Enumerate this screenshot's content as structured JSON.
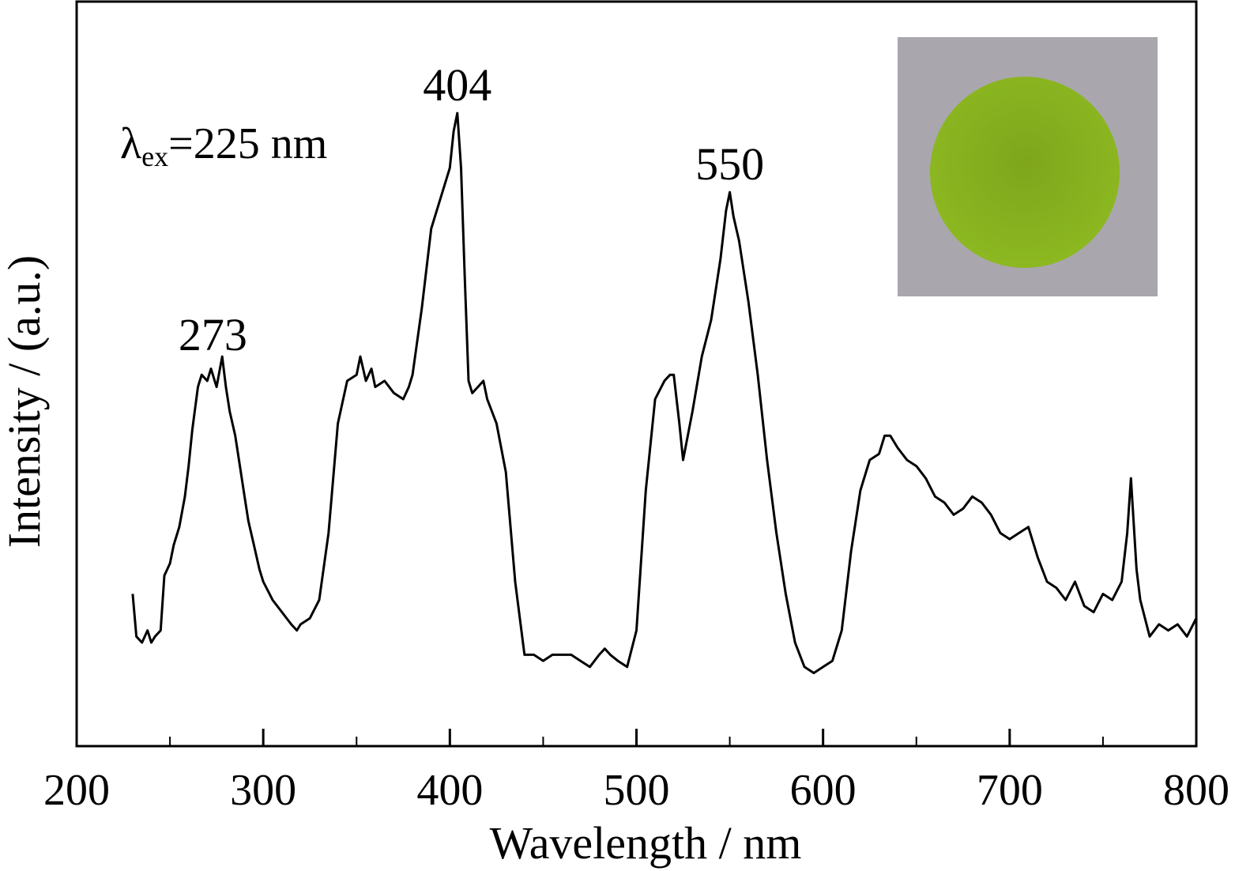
{
  "chart_data": {
    "type": "line",
    "title": "",
    "xlabel": "Wavelength / nm",
    "ylabel": "Intensity / (a.u.)",
    "xlim": [
      200,
      800
    ],
    "ylim": [
      0,
      100
    ],
    "y_tick_labels": false,
    "x_ticks": [
      200,
      300,
      400,
      500,
      600,
      700,
      800
    ],
    "x_minor_ticks": [
      250,
      350,
      450,
      550,
      650,
      750
    ],
    "grid": false,
    "excitation_annotation": {
      "lambda": "λ",
      "subscript": "ex",
      "text": "=225 nm"
    },
    "peak_labels": [
      {
        "x": 273,
        "y": 56,
        "text": "273"
      },
      {
        "x": 404,
        "y": 97,
        "text": "404"
      },
      {
        "x": 550,
        "y": 84,
        "text": "550"
      }
    ],
    "inset": {
      "description_colors": {
        "background": "#aaa6ad",
        "disk": "#86b01e"
      }
    },
    "colors": {
      "line": "#000000",
      "axis": "#000000"
    },
    "series": [
      {
        "x": [
          230,
          232,
          235,
          238,
          240,
          242,
          245,
          247,
          250,
          252,
          255,
          258,
          260,
          262,
          265,
          267,
          270,
          272,
          275,
          278,
          280,
          282,
          285,
          288,
          290,
          292,
          295,
          298,
          300,
          305,
          310,
          315,
          318,
          320,
          325,
          330,
          335,
          340,
          345,
          350,
          352,
          355,
          358,
          360,
          365,
          370,
          375,
          378,
          380,
          385,
          390,
          395,
          400,
          402,
          404,
          406,
          408,
          410,
          412,
          415,
          418,
          420,
          425,
          430,
          435,
          440,
          445,
          450,
          455,
          460,
          465,
          470,
          475,
          480,
          483,
          486,
          490,
          495,
          500,
          505,
          510,
          515,
          518,
          520,
          523,
          525,
          530,
          535,
          540,
          545,
          548,
          550,
          552,
          555,
          560,
          565,
          570,
          575,
          580,
          585,
          590,
          595,
          600,
          605,
          610,
          615,
          620,
          625,
          630,
          633,
          636,
          640,
          645,
          650,
          655,
          660,
          665,
          670,
          675,
          680,
          685,
          690,
          695,
          700,
          705,
          710,
          712,
          715,
          720,
          725,
          730,
          735,
          740,
          745,
          750,
          755,
          760,
          763,
          765,
          768,
          770,
          775,
          780,
          785,
          790,
          795,
          800
        ],
        "y": [
          18,
          11,
          10,
          12,
          10,
          11,
          12,
          21,
          23,
          26,
          29,
          34,
          39,
          45,
          52,
          54,
          53,
          55,
          52,
          57,
          52,
          48,
          44,
          38,
          34,
          30,
          26,
          22,
          20,
          17,
          15,
          13,
          12,
          13,
          14,
          17,
          28,
          46,
          53,
          54,
          57,
          53,
          55,
          52,
          53,
          51,
          50,
          52,
          54,
          65,
          78,
          83,
          88,
          94,
          97,
          88,
          70,
          53,
          51,
          52,
          53,
          50,
          46,
          38,
          20,
          8,
          8,
          7,
          8,
          8,
          8,
          7,
          6,
          8,
          9,
          8,
          7,
          6,
          12,
          35,
          50,
          53,
          54,
          54,
          46,
          40,
          48,
          57,
          63,
          73,
          81,
          84,
          80,
          76,
          66,
          54,
          40,
          28,
          18,
          10,
          6,
          5,
          6,
          7,
          12,
          25,
          35,
          40,
          41,
          44,
          44,
          42,
          40,
          39,
          37,
          34,
          33,
          31,
          32,
          34,
          33,
          31,
          28,
          27,
          28,
          29,
          27,
          24,
          20,
          19,
          17,
          20,
          16,
          15,
          18,
          17,
          20,
          28,
          37,
          22,
          17,
          11,
          13,
          12,
          13,
          11,
          14
        ]
      }
    ]
  }
}
